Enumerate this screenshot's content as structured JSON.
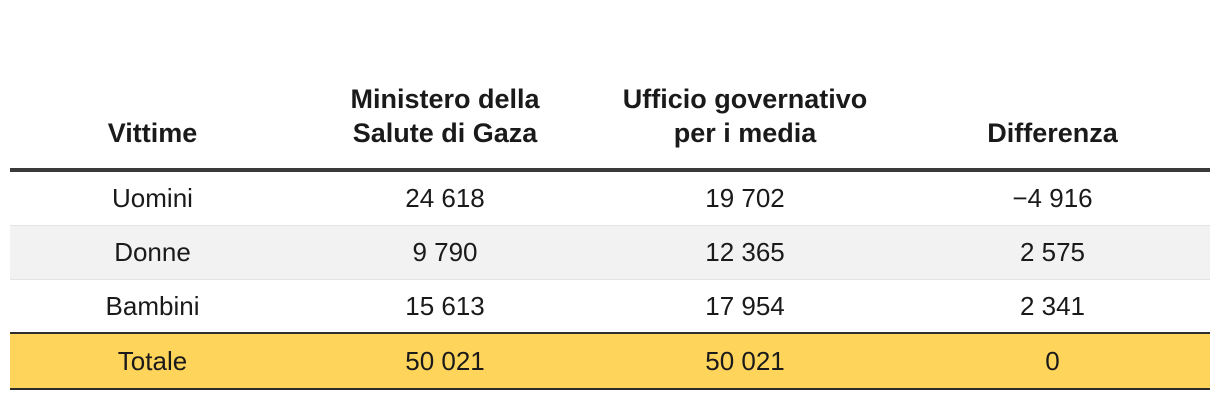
{
  "chart_data": {
    "type": "table",
    "columns": [
      "Vittime",
      "Ministero della Salute di Gaza",
      "Ufficio governativo per i media",
      "Differenza"
    ],
    "rows": [
      {
        "label": "Uomini",
        "values": [
          "24 618",
          "19 702",
          "−4 916"
        ]
      },
      {
        "label": "Donne",
        "values": [
          "9 790",
          "12 365",
          "2 575"
        ]
      },
      {
        "label": "Bambini",
        "values": [
          "15 613",
          "17 954",
          "2 341"
        ]
      }
    ],
    "total": {
      "label": "Totale",
      "values": [
        "50 021",
        "50 021",
        "0"
      ]
    },
    "colors": {
      "total_highlight": "#ffd45a",
      "stripe": "#f2f2f2"
    }
  }
}
